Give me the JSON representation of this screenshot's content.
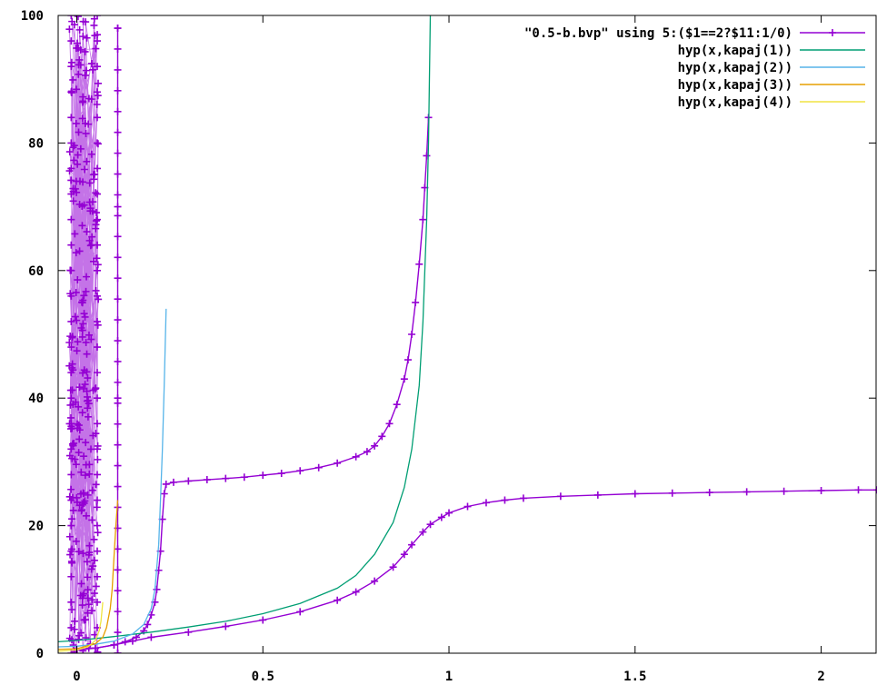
{
  "chart_data": {
    "type": "line",
    "title": "",
    "xlabel": "",
    "ylabel": "",
    "xlim": [
      -0.05,
      2.15
    ],
    "ylim": [
      0,
      100
    ],
    "grid": false,
    "legend_position": "top-right",
    "x_ticks": [
      0,
      0.5,
      1,
      1.5,
      2
    ],
    "x_tick_labels": [
      "0",
      "0.5",
      "1",
      "1.5",
      "2"
    ],
    "y_ticks": [
      0,
      20,
      40,
      60,
      80,
      100
    ],
    "y_tick_labels": [
      "0",
      "20",
      "40",
      "60",
      "80",
      "100"
    ],
    "series": [
      {
        "name": "\"0.5-b.bvp\" using 5:($1==2?$11:1/0)",
        "color": "#9400d3",
        "style": "linespoints",
        "marker": "plus",
        "branches": [
          {
            "x": [
              0,
              0.05,
              0.1,
              0.13,
              0.16,
              0.18,
              0.19,
              0.2,
              0.21,
              0.215,
              0.22,
              0.225,
              0.23,
              0.235,
              0.24,
              0.26,
              0.3,
              0.35,
              0.4,
              0.45,
              0.5,
              0.55,
              0.6,
              0.65,
              0.7,
              0.75,
              0.78,
              0.8,
              0.82,
              0.84,
              0.86,
              0.88,
              0.89,
              0.9,
              0.91,
              0.92,
              0.93,
              0.935,
              0.94,
              0.945
            ],
            "y": [
              0.5,
              0.8,
              1.3,
              1.8,
              2.5,
              3.5,
              4.5,
              6,
              8,
              10,
              13,
              16,
              21,
              25,
              26.5,
              26.8,
              27,
              27.2,
              27.4,
              27.6,
              27.9,
              28.2,
              28.6,
              29.1,
              29.8,
              30.8,
              31.6,
              32.5,
              34,
              36,
              39,
              43,
              46,
              50,
              55,
              61,
              68,
              73,
              78,
              84
            ]
          },
          {
            "x": [
              0.05,
              0.1,
              0.15,
              0.2,
              0.3,
              0.4,
              0.5,
              0.6,
              0.7,
              0.75,
              0.8,
              0.85,
              0.88,
              0.9,
              0.93,
              0.95,
              0.98,
              1.0,
              1.05,
              1.1,
              1.15,
              1.2,
              1.3,
              1.4,
              1.5,
              1.6,
              1.7,
              1.8,
              1.9,
              2.0,
              2.1,
              2.15
            ],
            "y": [
              0.8,
              1.3,
              1.9,
              2.5,
              3.3,
              4.2,
              5.2,
              6.5,
              8.3,
              9.6,
              11.3,
              13.5,
              15.5,
              17,
              19,
              20.2,
              21.3,
              22,
              23,
              23.6,
              24,
              24.3,
              24.6,
              24.8,
              25,
              25.1,
              25.2,
              25.3,
              25.4,
              25.5,
              25.6,
              25.6
            ]
          },
          {
            "x": [
              0.11,
              0.11,
              0.11,
              0.11
            ],
            "y": [
              0,
              40,
              70,
              98
            ]
          }
        ],
        "dense_region_x": [
          -0.02,
          0.06
        ],
        "dense_region_y": [
          0,
          100
        ]
      },
      {
        "name": "hyp(x,kapaj(1))",
        "color": "#009e73",
        "style": "line",
        "x": [
          -0.05,
          0.0,
          0.1,
          0.2,
          0.3,
          0.4,
          0.5,
          0.6,
          0.7,
          0.75,
          0.8,
          0.85,
          0.88,
          0.9,
          0.92,
          0.93,
          0.94,
          0.945,
          0.95
        ],
        "y": [
          1.8,
          2.0,
          2.6,
          3.3,
          4.1,
          5.0,
          6.2,
          7.8,
          10.2,
          12.2,
          15.5,
          20.5,
          26,
          32,
          42,
          52,
          68,
          80,
          100
        ]
      },
      {
        "name": "hyp(x,kapaj(2))",
        "color": "#56b4e9",
        "style": "line",
        "x": [
          -0.05,
          0.0,
          0.05,
          0.1,
          0.15,
          0.18,
          0.2,
          0.21,
          0.22,
          0.225,
          0.23,
          0.235,
          0.24
        ],
        "y": [
          1.0,
          1.1,
          1.4,
          1.9,
          3.0,
          4.5,
          7.0,
          10,
          17,
          24,
          32,
          42,
          54
        ]
      },
      {
        "name": "hyp(x,kapaj(3))",
        "color": "#e69f00",
        "style": "line",
        "x": [
          -0.05,
          0.0,
          0.05,
          0.07,
          0.08,
          0.09,
          0.095,
          0.1,
          0.105,
          0.11
        ],
        "y": [
          0.6,
          0.7,
          1.5,
          2.5,
          4,
          7,
          10,
          15,
          20,
          24
        ]
      },
      {
        "name": "hyp(x,kapaj(4))",
        "color": "#f0e442",
        "style": "line",
        "x": [
          -0.05,
          0.0,
          0.03,
          0.05,
          0.06,
          0.065,
          0.07
        ],
        "y": [
          0.3,
          0.5,
          1.0,
          2.0,
          3.5,
          5,
          8
        ]
      }
    ]
  }
}
